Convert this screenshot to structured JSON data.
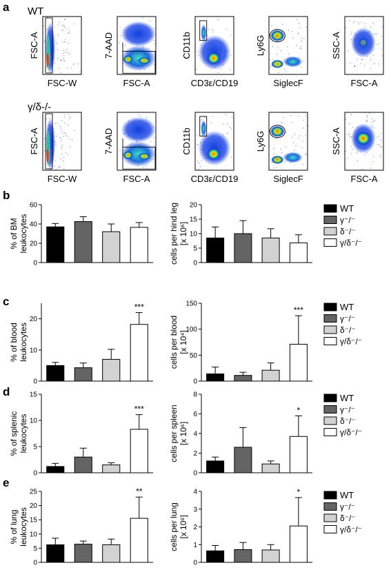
{
  "panel_labels": [
    "a",
    "b",
    "c",
    "d",
    "e"
  ],
  "flow": {
    "rows": [
      {
        "genotype": "WT",
        "plots": [
          {
            "y": "FSC-A",
            "x": "FSC-W"
          },
          {
            "y": "7-AAD",
            "x": "FSC-A"
          },
          {
            "y": "CD11b",
            "x": "CD3ε/CD19"
          },
          {
            "y": "Ly6G",
            "x": "SiglecF"
          },
          {
            "y": "SSC-A",
            "x": "FSC-A"
          }
        ]
      },
      {
        "genotype": "γ/δ-/-",
        "plots": [
          {
            "y": "FSC-A",
            "x": "FSC-W"
          },
          {
            "y": "7-AAD",
            "x": "FSC-A"
          },
          {
            "y": "CD11b",
            "x": "CD3ε/CD19"
          },
          {
            "y": "Ly6G",
            "x": "SiglecF"
          },
          {
            "y": "SSC-A",
            "x": "FSC-A"
          }
        ]
      }
    ]
  },
  "legend": {
    "entries": [
      {
        "label": "WT",
        "color": "#000000"
      },
      {
        "label": "γ⁻/⁻",
        "color": "#646464"
      },
      {
        "label": "δ⁻/⁻",
        "color": "#d2d2d2"
      },
      {
        "label": "γ/δ⁻/⁻",
        "color": "#ffffff"
      }
    ]
  },
  "chart_data": [
    {
      "panel": "b",
      "type": "bar",
      "ylabel_lines": [
        "% of BM",
        "leukocytes"
      ],
      "categories": [
        "WT",
        "γ-/-",
        "δ-/-",
        "γ/δ-/-"
      ],
      "values": [
        37,
        42.5,
        32,
        36.5
      ],
      "errors": [
        3.5,
        5,
        8,
        5
      ],
      "ylim": [
        0,
        60
      ],
      "yticks": [
        0,
        20,
        40,
        60
      ],
      "tick_labels": [
        "0",
        "20",
        "40",
        "60"
      ],
      "significance": [
        "",
        "",
        "",
        ""
      ]
    },
    {
      "panel": "b",
      "type": "bar",
      "ylabel_lines": [
        "cells per hind leg",
        "[x 10⁶]"
      ],
      "categories": [
        "WT",
        "γ-/-",
        "δ-/-",
        "γ/δ-/-"
      ],
      "values": [
        8.5,
        10,
        8.5,
        6.8
      ],
      "errors": [
        3.8,
        4.5,
        3.2,
        2.8
      ],
      "ylim": [
        0,
        20
      ],
      "yticks": [
        0,
        5,
        10,
        15,
        20
      ],
      "tick_labels": [
        "0",
        "5",
        "10",
        "15",
        "20"
      ],
      "significance": [
        "",
        "",
        "",
        ""
      ]
    },
    {
      "panel": "c",
      "type": "bar",
      "ylabel_lines": [
        "% of blood",
        "leukocytes"
      ],
      "categories": [
        "WT",
        "γ-/-",
        "δ-/-",
        "γ/δ-/-"
      ],
      "values": [
        5,
        4.3,
        7,
        18.2
      ],
      "errors": [
        1,
        1.5,
        3.2,
        3.8
      ],
      "ylim": [
        0,
        25
      ],
      "yticks": [
        0,
        10,
        20
      ],
      "tick_labels": [
        "0",
        "10",
        "20"
      ],
      "significance": [
        "",
        "",
        "",
        "***"
      ]
    },
    {
      "panel": "c",
      "type": "bar",
      "ylabel_lines": [
        "cells per blood",
        "[x 10⁴]"
      ],
      "categories": [
        "WT",
        "γ-/-",
        "δ-/-",
        "γ/δ-/-"
      ],
      "values": [
        14,
        11,
        21,
        71
      ],
      "errors": [
        13,
        6,
        14,
        55
      ],
      "ylim": [
        0,
        150
      ],
      "yticks": [
        0,
        50,
        100,
        150
      ],
      "tick_labels": [
        "0",
        "50",
        "100",
        "150"
      ],
      "significance": [
        "",
        "",
        "",
        "***"
      ]
    },
    {
      "panel": "d",
      "type": "bar",
      "ylabel_lines": [
        "% of splenic",
        "leukocytes"
      ],
      "categories": [
        "WT",
        "γ-/-",
        "δ-/-",
        "γ/δ-/-"
      ],
      "values": [
        1.2,
        3,
        1.5,
        8.3
      ],
      "errors": [
        0.6,
        1.7,
        0.4,
        2.8
      ],
      "ylim": [
        0,
        15
      ],
      "yticks": [
        0,
        5,
        10,
        15
      ],
      "tick_labels": [
        "0",
        "5",
        "10",
        "15"
      ],
      "significance": [
        "",
        "",
        "",
        "***"
      ]
    },
    {
      "panel": "d",
      "type": "bar",
      "ylabel_lines": [
        "cells per spleen",
        "[x 10⁶]"
      ],
      "categories": [
        "WT",
        "γ-/-",
        "δ-/-",
        "γ/δ-/-"
      ],
      "values": [
        1.2,
        2.6,
        0.9,
        3.7
      ],
      "errors": [
        0.4,
        2,
        0.3,
        2.1
      ],
      "ylim": [
        0,
        8
      ],
      "yticks": [
        0,
        2,
        4,
        6,
        8
      ],
      "tick_labels": [
        "0",
        "2",
        "4",
        "6",
        "8"
      ],
      "significance": [
        "",
        "",
        "",
        "*"
      ]
    },
    {
      "panel": "e",
      "type": "bar",
      "ylabel_lines": [
        "% of lung",
        "leukocytes"
      ],
      "categories": [
        "WT",
        "γ-/-",
        "δ-/-",
        "γ/δ-/-"
      ],
      "values": [
        6.2,
        6.4,
        6.2,
        15.5
      ],
      "errors": [
        2.3,
        1.1,
        2,
        7.5
      ],
      "ylim": [
        0,
        25
      ],
      "yticks": [
        0,
        5,
        10,
        15,
        20,
        25
      ],
      "tick_labels": [
        "0",
        "5",
        "10",
        "15",
        "20",
        "25"
      ],
      "significance": [
        "",
        "",
        "",
        "**"
      ]
    },
    {
      "panel": "e",
      "type": "bar",
      "ylabel_lines": [
        "cells per lung",
        "[x 10⁶]"
      ],
      "categories": [
        "WT",
        "γ-/-",
        "δ-/-",
        "γ/δ-/-"
      ],
      "values": [
        0.65,
        0.72,
        0.7,
        2.05
      ],
      "errors": [
        0.3,
        0.4,
        0.3,
        1.6
      ],
      "ylim": [
        0,
        4
      ],
      "yticks": [
        0,
        1,
        2,
        3,
        4
      ],
      "tick_labels": [
        "0",
        "1",
        "2",
        "3",
        "4"
      ],
      "significance": [
        "",
        "",
        "",
        "*"
      ]
    }
  ]
}
